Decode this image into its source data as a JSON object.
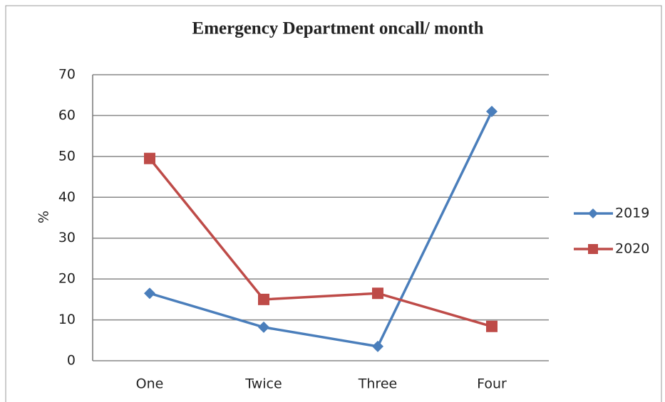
{
  "chart_data": {
    "type": "line",
    "title": "Emergency Department oncall/ month",
    "ylabel": "%",
    "categories": [
      "One",
      "Twice",
      "Three",
      "Four"
    ],
    "series": [
      {
        "name": "2019",
        "color": "#4a7ebb",
        "marker": "diamond",
        "values": [
          16.5,
          8.2,
          3.5,
          61
        ]
      },
      {
        "name": "2020",
        "color": "#be4b48",
        "marker": "square",
        "values": [
          49.5,
          15,
          16.5,
          8.4
        ]
      }
    ],
    "ylim": [
      0,
      70
    ],
    "yticks": [
      0,
      10,
      20,
      30,
      40,
      50,
      60,
      70
    ],
    "grid": true,
    "legend": "right"
  }
}
